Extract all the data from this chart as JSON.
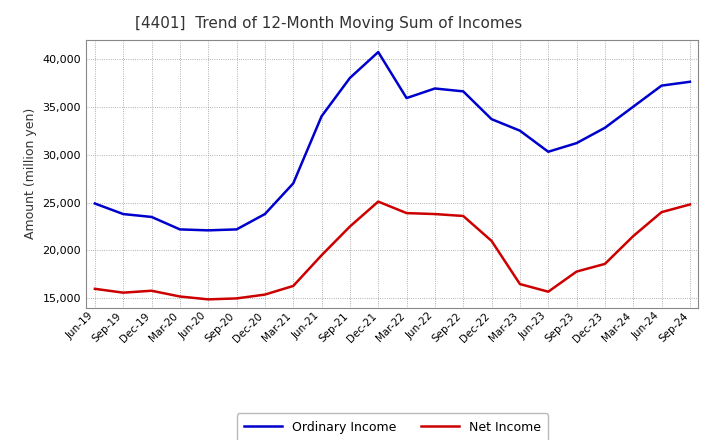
{
  "title": "[4401]  Trend of 12-Month Moving Sum of Incomes",
  "ylabel": "Amount (million yen)",
  "ylim": [
    14000,
    42000
  ],
  "yticks": [
    15000,
    20000,
    25000,
    30000,
    35000,
    40000
  ],
  "background_color": "#ffffff",
  "plot_bg_color": "#ffffff",
  "grid_color": "#999999",
  "ordinary_income_color": "#0000cc",
  "net_income_color": "#cc0000",
  "ordinary_income_label": "Ordinary Income",
  "net_income_label": "Net Income",
  "title_color": "#333333",
  "x_labels": [
    "Jun-19",
    "Sep-19",
    "Dec-19",
    "Mar-20",
    "Jun-20",
    "Sep-20",
    "Dec-20",
    "Mar-21",
    "Jun-21",
    "Sep-21",
    "Dec-21",
    "Mar-22",
    "Jun-22",
    "Sep-22",
    "Dec-22",
    "Mar-23",
    "Jun-23",
    "Sep-23",
    "Dec-23",
    "Mar-24",
    "Jun-24",
    "Sep-24"
  ],
  "ordinary_income": [
    24900,
    23800,
    23500,
    22200,
    22100,
    22200,
    23800,
    27000,
    34000,
    38000,
    40700,
    35900,
    36900,
    36600,
    33700,
    32500,
    30300,
    31200,
    32800,
    35000,
    37200,
    37600
  ],
  "net_income": [
    16000,
    15600,
    15800,
    15200,
    14900,
    15000,
    15400,
    16300,
    19500,
    22500,
    25100,
    23900,
    23800,
    23600,
    21000,
    16500,
    15700,
    17800,
    18600,
    21500,
    24000,
    24800
  ]
}
